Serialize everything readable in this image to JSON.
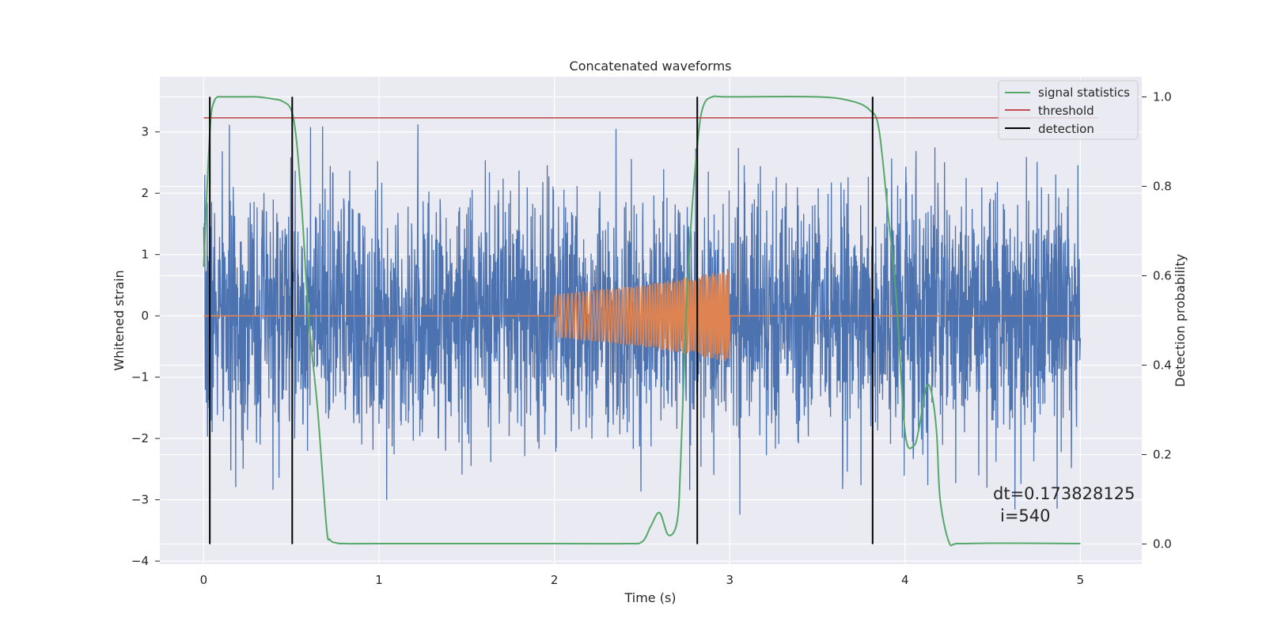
{
  "chart_data": {
    "type": "line",
    "title": "Concatenated waveforms",
    "xlabel": "Time (s)",
    "ylabel": "Whitened strain",
    "ylabel_right": "Detection probability",
    "xlim": [
      -0.25,
      5.35
    ],
    "ylim": [
      -4.05,
      3.9
    ],
    "ylim_right": [
      -0.045,
      1.045
    ],
    "x_ticks": [
      0,
      1,
      2,
      3,
      4,
      5
    ],
    "y_ticks": [
      -4,
      -3,
      -2,
      -1,
      0,
      1,
      2,
      3
    ],
    "y_ticks_right": [
      0.0,
      0.2,
      0.4,
      0.6,
      0.8,
      1.0
    ],
    "grid": true,
    "legend_position": "top-right",
    "series": [
      {
        "name": "",
        "axis": "left",
        "color": "#4c72b0",
        "kind": "noise",
        "x_range": [
          0,
          5
        ],
        "typical_amplitude": 1.0,
        "min": -3.7,
        "max": 3.6
      },
      {
        "name": "",
        "axis": "left",
        "color": "#dd8452",
        "kind": "chirp",
        "x": [
          0,
          2,
          2.5,
          3,
          3.0001,
          5
        ],
        "envelope": [
          0,
          0.35,
          0.5,
          0.75,
          0,
          0
        ],
        "chirp_range": [
          2.0,
          3.0
        ]
      },
      {
        "name": "signal statistics",
        "axis": "right",
        "color": "#55a868",
        "x": [
          0,
          0.02,
          0.04,
          0.06,
          0.08,
          0.1,
          0.2,
          0.3,
          0.4,
          0.45,
          0.5,
          0.53,
          0.56,
          0.6,
          0.65,
          0.7,
          0.72,
          0.75,
          0.8,
          1.0,
          2.0,
          2.4,
          2.5,
          2.55,
          2.6,
          2.65,
          2.7,
          2.72,
          2.75,
          2.78,
          2.82,
          2.85,
          2.9,
          3.0,
          3.5,
          3.7,
          3.8,
          3.85,
          3.9,
          3.95,
          4.0,
          4.05,
          4.08,
          4.12,
          4.15,
          4.18,
          4.2,
          4.25,
          4.3,
          4.5,
          5.0
        ],
        "values": [
          0.62,
          0.8,
          0.95,
          0.99,
          1.0,
          1.0,
          1.0,
          1.0,
          0.995,
          0.99,
          0.97,
          0.9,
          0.75,
          0.5,
          0.3,
          0.04,
          0.01,
          0.003,
          0.001,
          0.001,
          0.001,
          0.001,
          0.005,
          0.04,
          0.07,
          0.02,
          0.05,
          0.18,
          0.5,
          0.72,
          0.91,
          0.98,
          1.0,
          1.0,
          1.0,
          0.99,
          0.97,
          0.93,
          0.75,
          0.55,
          0.25,
          0.22,
          0.26,
          0.35,
          0.34,
          0.25,
          0.1,
          0.005,
          0.001,
          0.002,
          0.001
        ]
      },
      {
        "name": "threshold",
        "axis": "left",
        "color": "#c44e52",
        "x": [
          0,
          5.1
        ],
        "values": [
          3.23,
          3.23
        ]
      },
      {
        "name": "detection",
        "axis": "right",
        "color": "#000000",
        "kind": "vertical-lines",
        "x": [
          0.035,
          0.505,
          2.815,
          3.815
        ],
        "y_range": [
          0.0,
          1.0
        ]
      }
    ],
    "annotation": {
      "line1": "dt=0.173828125",
      "line2": "i=540"
    }
  }
}
